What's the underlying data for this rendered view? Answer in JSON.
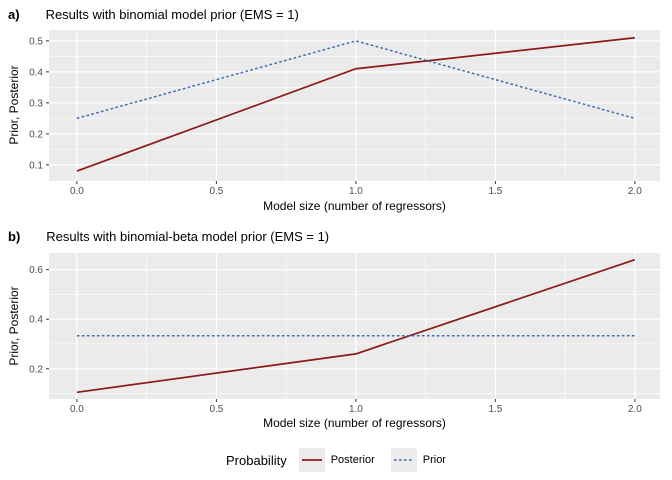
{
  "colors": {
    "panel_background": "#EBEBEB",
    "grid_major": "#FFFFFF",
    "grid_minor": "#F7F7F7",
    "tick_mark": "#333333",
    "tick_text": "#4D4D4D",
    "posterior": "#8B1A1A",
    "prior": "#3B6DB2",
    "legend_key_background": "#ECECEC"
  },
  "legend": {
    "title": "Probability",
    "items": [
      {
        "label": "Posterior",
        "color": "#8B1A1A",
        "linetype": "solid"
      },
      {
        "label": "Prior",
        "color": "#3B6DB2",
        "linetype": "dotted"
      }
    ]
  },
  "chart_data": [
    {
      "id": "a",
      "type": "line",
      "tag": "a)",
      "title": "Results with binomial model prior (EMS = 1)",
      "xlabel": "Model size (number of regressors)",
      "ylabel": "Prior, Posterior",
      "x": [
        0,
        1,
        2
      ],
      "series": [
        {
          "name": "Posterior",
          "values": [
            0.08,
            0.41,
            0.51
          ],
          "color": "#8B1A1A",
          "linetype": "solid"
        },
        {
          "name": "Prior",
          "values": [
            0.25,
            0.5,
            0.25
          ],
          "color": "#3B6DB2",
          "linetype": "dotted"
        }
      ],
      "xlim": [
        -0.1,
        2.09
      ],
      "ylim": [
        0.048,
        0.535
      ],
      "xticks": [
        0.0,
        0.5,
        1.0,
        1.5,
        2.0
      ],
      "xtick_labels": [
        "0.0",
        "0.5",
        "1.0",
        "1.5",
        "2.0"
      ],
      "xticks_minor": [
        0.25,
        0.75,
        1.25,
        1.75
      ],
      "yticks": [
        0.1,
        0.2,
        0.3,
        0.4,
        0.5
      ],
      "ytick_labels": [
        "0.1",
        "0.2",
        "0.3",
        "0.4",
        "0.5"
      ],
      "yticks_minor": [
        0.15,
        0.25,
        0.35,
        0.45
      ],
      "grid": true,
      "legend_position": "bottom"
    },
    {
      "id": "b",
      "type": "line",
      "tag": "b)",
      "title": "Results with binomial-beta model prior (EMS = 1)",
      "xlabel": "Model size (number of regressors)",
      "ylabel": "Prior, Posterior",
      "x": [
        0,
        1,
        2
      ],
      "series": [
        {
          "name": "Posterior",
          "values": [
            0.105,
            0.26,
            0.64
          ],
          "color": "#8B1A1A",
          "linetype": "solid"
        },
        {
          "name": "Prior",
          "values": [
            0.333,
            0.333,
            0.333
          ],
          "color": "#3B6DB2",
          "linetype": "dotted"
        }
      ],
      "xlim": [
        -0.1,
        2.09
      ],
      "ylim": [
        0.078,
        0.667
      ],
      "xticks": [
        0.0,
        0.5,
        1.0,
        1.5,
        2.0
      ],
      "xtick_labels": [
        "0.0",
        "0.5",
        "1.0",
        "1.5",
        "2.0"
      ],
      "xticks_minor": [
        0.25,
        0.75,
        1.25,
        1.75
      ],
      "yticks": [
        0.2,
        0.4,
        0.6
      ],
      "ytick_labels": [
        "0.2",
        "0.4",
        "0.6"
      ],
      "yticks_minor": [
        0.1,
        0.3,
        0.5
      ],
      "grid": true,
      "legend_position": "bottom"
    }
  ]
}
